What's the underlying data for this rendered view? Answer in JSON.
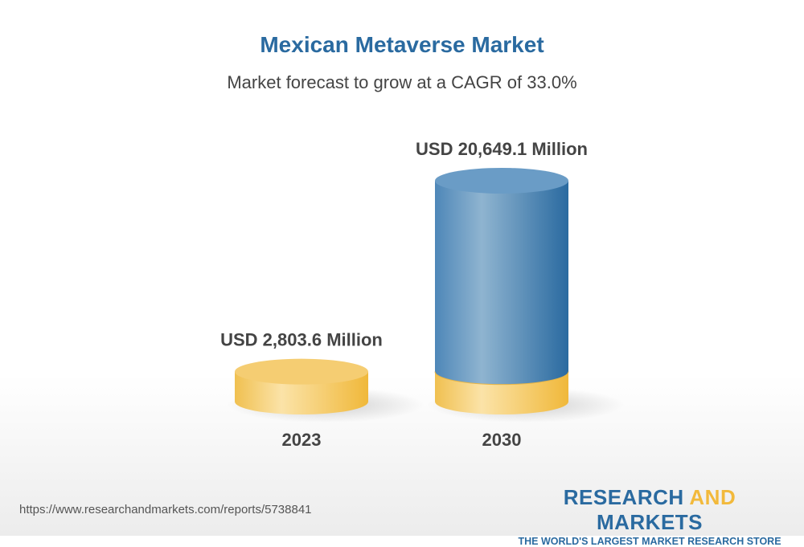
{
  "chart_data": {
    "type": "bar",
    "style": "3d-cylinder",
    "title": "Mexican Metaverse Market",
    "subtitle": "Market forecast to grow at a CAGR of 33.0%",
    "categories": [
      "2023",
      "2030"
    ],
    "values": [
      2803.6,
      20649.1
    ],
    "unit": "USD Million",
    "data_labels": [
      "USD 2,803.6 Million",
      "USD 20,649.1 Million"
    ],
    "colors": {
      "base": "#f2c35a",
      "growth": "#3a7db0",
      "title": "#2a6aa0"
    },
    "grid": false
  },
  "footer": {
    "url": "https://www.researchandmarkets.com/reports/5738841",
    "logo_line1_a": "RESEARCH ",
    "logo_line1_b": "AND",
    "logo_line1_c": " MARKETS",
    "logo_tagline": "THE WORLD'S LARGEST MARKET RESEARCH STORE"
  }
}
